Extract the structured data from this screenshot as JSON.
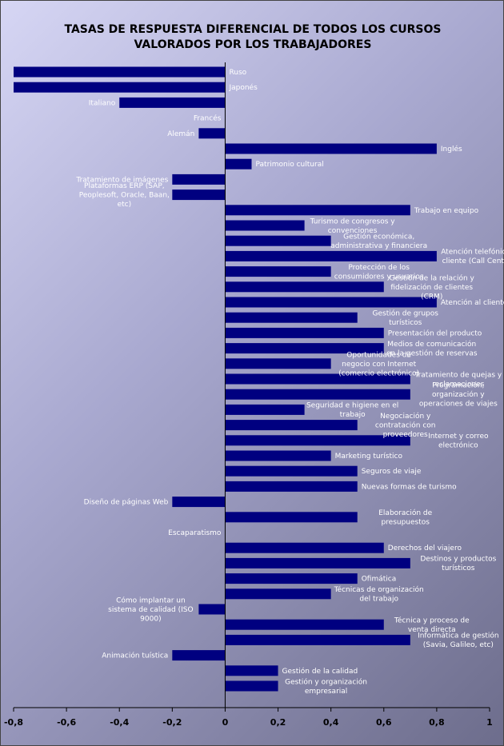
{
  "chart_data": {
    "type": "bar",
    "orientation": "horizontal",
    "title": "TASAS DE RESPUESTA DIFERENCIAL DE TODOS LOS CURSOS VALORADOS POR LOS TRABAJADORES",
    "title_lines": [
      "TASAS DE RESPUESTA DIFERENCIAL DE TODOS LOS CURSOS",
      "VALORADOS POR LOS TRABAJADORES"
    ],
    "xlabel": "",
    "ylabel": "",
    "xlim": [
      -0.8,
      1
    ],
    "xticks": [
      "-0,8",
      "-0,6",
      "-0,4",
      "-0,2",
      "0",
      "0,2",
      "0,4",
      "0,6",
      "0,8",
      "1"
    ],
    "grid": false,
    "legend": "none",
    "bar_color": "#000080",
    "categories": [
      [
        "Ruso"
      ],
      [
        "Japonés"
      ],
      [
        "Italiano"
      ],
      [
        "Francés"
      ],
      [
        "Alemán"
      ],
      [
        "Inglés"
      ],
      [
        "Patrimonio cultural"
      ],
      [
        "Tratamiento de imágenes"
      ],
      [
        "Plataformas ERP (SAP,",
        "Peoplesoft, Oracle, Baan,",
        "etc)"
      ],
      [
        "Trabajo en equipo"
      ],
      [
        "Turismo de congresos y",
        "convenciones"
      ],
      [
        "Gestión económica,",
        "administrativa y financiera"
      ],
      [
        "Atención telefónica al",
        "cliente (Call Centers)"
      ],
      [
        "Protección de los",
        "consumidores y usuarios"
      ],
      [
        "Gestión de la relación y",
        "fidelización de clientes",
        "(CRM)"
      ],
      [
        "Atención al cliente"
      ],
      [
        "Gestión de grupos",
        "turísticos"
      ],
      [
        "Presentación del producto"
      ],
      [
        "Medios de comunicación",
        "en la gestión de reservas"
      ],
      [
        "Oportunidades de",
        "negocio con Internet",
        "(comercio electrónico)"
      ],
      [
        "Tratamiento de quejas y",
        "reclamaciones"
      ],
      [
        "Programación,",
        "organización y",
        "operaciones de viajes"
      ],
      [
        "Seguridad e higiene en el",
        "trabajo"
      ],
      [
        "Negociación y",
        "contratación con",
        "proveedores"
      ],
      [
        "Internet y correo",
        "electrónico"
      ],
      [
        "Marketing turístico"
      ],
      [
        "Seguros de viaje"
      ],
      [
        "Nuevas formas de turismo"
      ],
      [
        "Diseño de páginas Web"
      ],
      [
        "Elaboración de",
        "presupuestos"
      ],
      [
        "Escaparatismo"
      ],
      [
        "Derechos del viajero"
      ],
      [
        "Destinos y productos",
        "turísticos"
      ],
      [
        "Ofimática"
      ],
      [
        "Técnicas de organización",
        "del trabajo"
      ],
      [
        "Cómo implantar un",
        "sistema de calidad (ISO",
        "9000)"
      ],
      [
        "Técnica y proceso de",
        "venta directa"
      ],
      [
        "Informática de gestión",
        "(Savia, Galileo, etc)"
      ],
      [
        "Animación tuística"
      ],
      [
        "Gestión de la calidad"
      ],
      [
        "Gestión y organización",
        "empresarial"
      ]
    ],
    "values": [
      -0.8,
      -0.8,
      -0.4,
      0,
      -0.1,
      0.8,
      0.1,
      -0.2,
      -0.2,
      0.7,
      0.3,
      0.4,
      0.8,
      0.4,
      0.6,
      0.8,
      0.5,
      0.6,
      0.6,
      0.4,
      0.7,
      0.7,
      0.3,
      0.5,
      0.7,
      0.4,
      0.5,
      0.5,
      -0.2,
      0.5,
      0,
      0.6,
      0.7,
      0.5,
      0.4,
      -0.1,
      0.6,
      0.7,
      -0.2,
      0.2,
      0.2
    ]
  }
}
